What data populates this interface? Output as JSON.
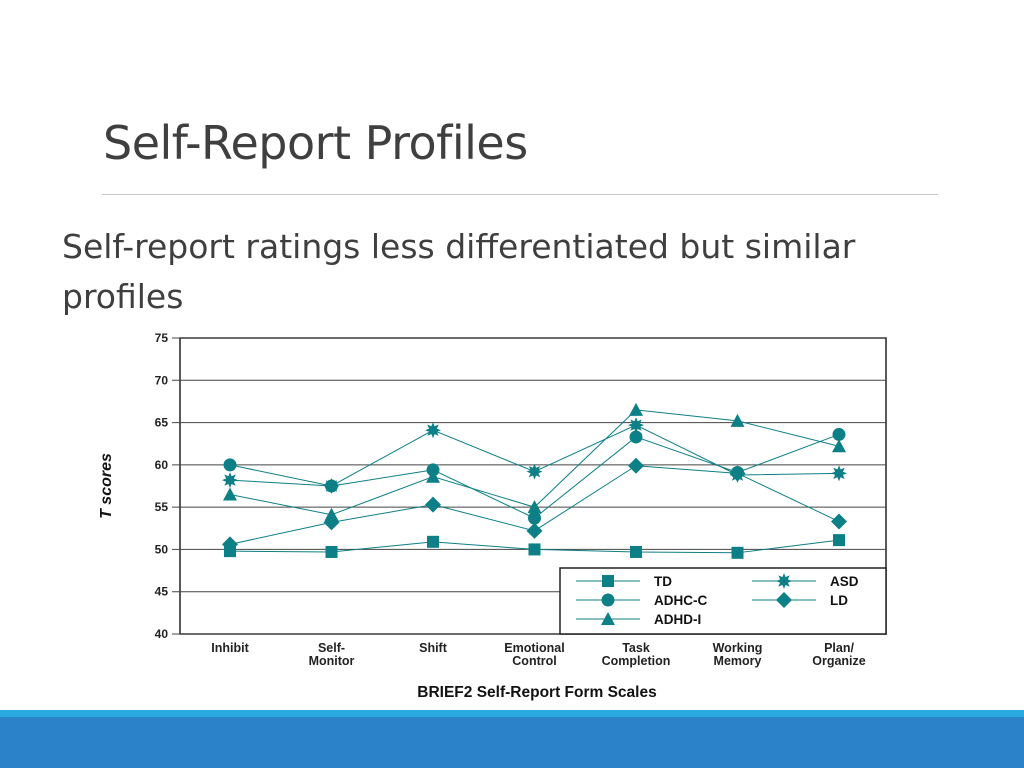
{
  "slide": {
    "title": "Self-Report Profiles",
    "subtitle": "Self-report ratings less differentiated but similar profiles"
  },
  "colors": {
    "series": "#0d7f86",
    "title_text": "#3f3f3f",
    "band_light": "#29abe2",
    "band_dark": "#2c82c9"
  },
  "chart_data": {
    "type": "line",
    "xlabel": "BRIEF2 Self-Report Form Scales",
    "ylabel": "T scores",
    "ylim": [
      40,
      75
    ],
    "yticks": [
      75,
      70,
      65,
      60,
      55,
      50,
      45,
      40
    ],
    "grid": true,
    "legend_position": "bottom-right",
    "categories": [
      [
        "Inhibit"
      ],
      [
        "Self-",
        "Monitor"
      ],
      [
        "Shift"
      ],
      [
        "Emotional",
        "Control"
      ],
      [
        "Task",
        "Completion"
      ],
      [
        "Working",
        "Memory"
      ],
      [
        "Plan/",
        "Organize"
      ]
    ],
    "series": [
      {
        "name": "TD",
        "marker": "square",
        "values": [
          49.8,
          49.7,
          50.9,
          50.0,
          49.7,
          49.6,
          51.1
        ]
      },
      {
        "name": "ADHC-C",
        "marker": "circle",
        "values": [
          60.0,
          57.5,
          59.4,
          53.7,
          63.3,
          59.1,
          63.6
        ]
      },
      {
        "name": "ADHD-I",
        "marker": "triangle",
        "values": [
          56.5,
          54.1,
          58.6,
          55.0,
          66.5,
          65.2,
          62.2
        ]
      },
      {
        "name": "ASD",
        "marker": "star",
        "values": [
          58.2,
          57.5,
          64.1,
          59.2,
          64.7,
          58.8,
          59.0
        ]
      },
      {
        "name": "LD",
        "marker": "diamond",
        "values": [
          50.6,
          53.2,
          55.3,
          52.2,
          59.9,
          59.0,
          53.3
        ]
      }
    ]
  }
}
